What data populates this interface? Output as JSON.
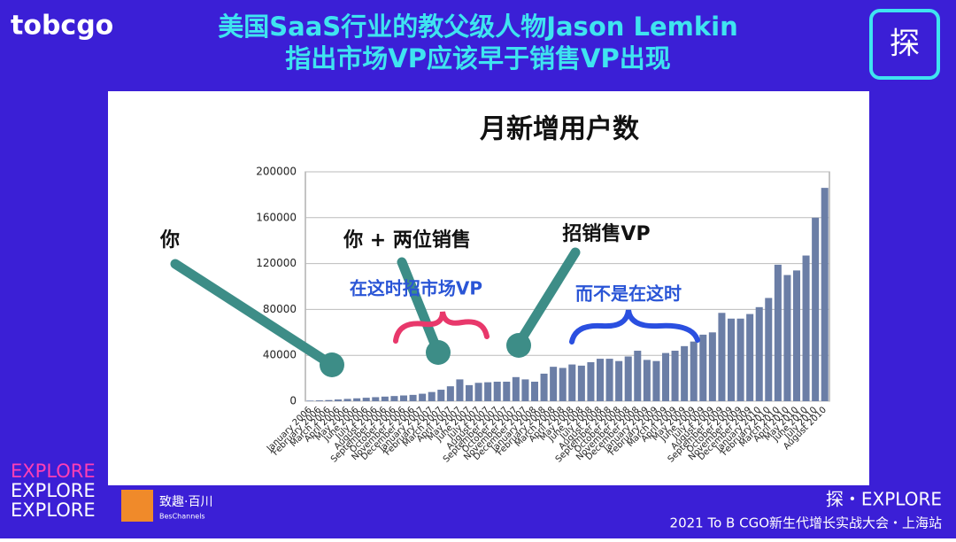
{
  "header": {
    "logo": "tobcgo",
    "title_line1": "美国SaaS行业的教父级人物Jason Lemkin",
    "title_line2": "指出市场VP应该早于销售VP出现",
    "badge": "探"
  },
  "chart_data": {
    "type": "bar",
    "title": "月新增用户数",
    "categories": [
      "January 2006",
      "February 2006",
      "March 2006",
      "April 2006",
      "May 2006",
      "June 2006",
      "July 2006",
      "August 2006",
      "September 2006",
      "October 2006",
      "November 2006",
      "December 2006",
      "January 2007",
      "February 2007",
      "March 2007",
      "April 2007",
      "May 2007",
      "June 2007",
      "July 2007",
      "August 2007",
      "September 2007",
      "October 2007",
      "November 2007",
      "December 2007",
      "January 2008",
      "February 2008",
      "March 2008",
      "April 2008",
      "May 2008",
      "June 2008",
      "July 2008",
      "August 2008",
      "September 2008",
      "October 2008",
      "November 2008",
      "December 2008",
      "January 2009",
      "February 2009",
      "March 2009",
      "April 2009",
      "May 2009",
      "June 2009",
      "July 2009",
      "August 2009",
      "September 2009",
      "October 2009",
      "November 2009",
      "December 2009",
      "January 2010",
      "February 2010",
      "March 2010",
      "April 2010",
      "May 2010",
      "June 2010",
      "July 2010",
      "August 2010"
    ],
    "values": [
      500,
      700,
      1000,
      1500,
      2000,
      2500,
      3000,
      3500,
      4000,
      4500,
      5000,
      5500,
      6500,
      8000,
      10000,
      13000,
      19000,
      14000,
      16000,
      16500,
      17000,
      17000,
      21000,
      19000,
      17000,
      24000,
      30000,
      29000,
      32000,
      31000,
      34000,
      37000,
      37000,
      35000,
      39000,
      44000,
      36000,
      35000,
      42000,
      44000,
      48000,
      52000,
      58000,
      60000,
      77000,
      72000,
      72000,
      76000,
      82000,
      90000,
      119000,
      110000,
      114000,
      127000,
      160000,
      186000
    ],
    "color": "#6b7ea6",
    "ylim": [
      0,
      200000
    ],
    "yticks": [
      0,
      40000,
      80000,
      120000,
      160000,
      200000
    ],
    "grid": true,
    "annotations": [
      "你",
      "你 + 两位销售",
      "招销售VP",
      "在这时招市场VP",
      "而不是在这时"
    ]
  },
  "footer": {
    "explore": [
      "EXPLORE",
      "EXPLORE",
      "EXPLORE"
    ],
    "brand": "致趣·百川",
    "brand_en": "BesChannels",
    "right_line1": "探・EXPLORE",
    "right_line2": "2021 To B CGO新生代增长实战大会・上海站"
  }
}
